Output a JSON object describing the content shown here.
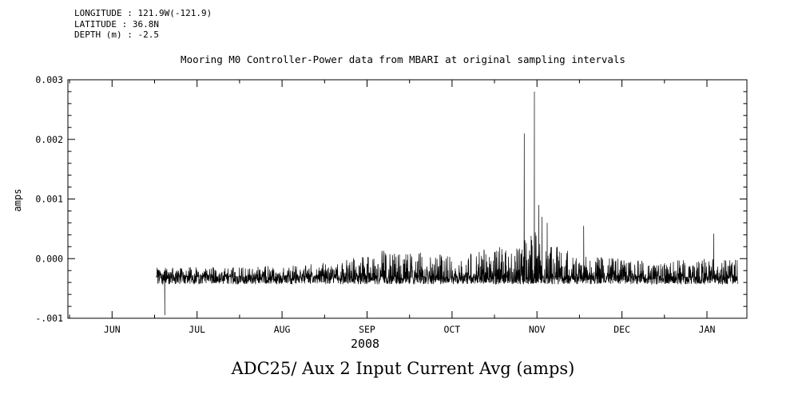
{
  "header": {
    "longitude": "LONGITUDE : 121.9W(-121.9)",
    "latitude": "LATITUDE : 36.8N",
    "depth": "DEPTH (m) : -2.5"
  },
  "chart_data": {
    "type": "line",
    "title": "Mooring M0 Controller-Power data from MBARI at original sampling intervals",
    "bottom_title": "ADC25/ Aux 2 Input Current Avg (amps)",
    "ylabel": "amps",
    "year_label": "2008",
    "ylim": [
      -0.001,
      0.003
    ],
    "ytick_values": [
      0.003,
      0.002,
      0.001,
      0.0,
      -0.001
    ],
    "ytick_labels": [
      "0.003",
      "0.002",
      "0.001",
      "0.000",
      "-.001"
    ],
    "y_minor_step": 0.0002,
    "x_months": [
      "JUN",
      "JUL",
      "AUG",
      "SEP",
      "OCT",
      "NOV",
      "DEC",
      "JAN"
    ],
    "x_range_months": [
      -0.52,
      7.47
    ],
    "x_minor_step": 0.5,
    "data_start_month": 0.52,
    "data_end_month": 7.36,
    "baseline": -0.0003,
    "noise_seed": 42,
    "points_count": 2800,
    "envelope_up": [
      [
        0.52,
        0.00015
      ],
      [
        1.5,
        0.00016
      ],
      [
        2.3,
        0.0002
      ],
      [
        2.8,
        0.0003
      ],
      [
        3.2,
        0.00045
      ],
      [
        3.6,
        0.0004
      ],
      [
        4.1,
        0.00042
      ],
      [
        4.5,
        0.00048
      ],
      [
        4.8,
        0.00055
      ],
      [
        5.0,
        0.0008
      ],
      [
        5.2,
        0.00055
      ],
      [
        5.5,
        0.00035
      ],
      [
        6.0,
        0.0003
      ],
      [
        6.5,
        0.00026
      ],
      [
        7.0,
        0.0003
      ],
      [
        7.36,
        0.00028
      ]
    ],
    "envelope_down": [
      [
        0.52,
        0.00013
      ],
      [
        7.36,
        0.00013
      ]
    ],
    "spikes": [
      [
        0.62,
        -0.00095
      ],
      [
        4.85,
        0.0021
      ],
      [
        4.97,
        0.0028
      ],
      [
        5.02,
        0.0009
      ],
      [
        5.06,
        0.0007
      ],
      [
        5.12,
        0.0006
      ],
      [
        5.55,
        0.00055
      ],
      [
        7.08,
        0.00042
      ]
    ],
    "line_color": "#000000",
    "legend": "none",
    "grid": "off"
  }
}
